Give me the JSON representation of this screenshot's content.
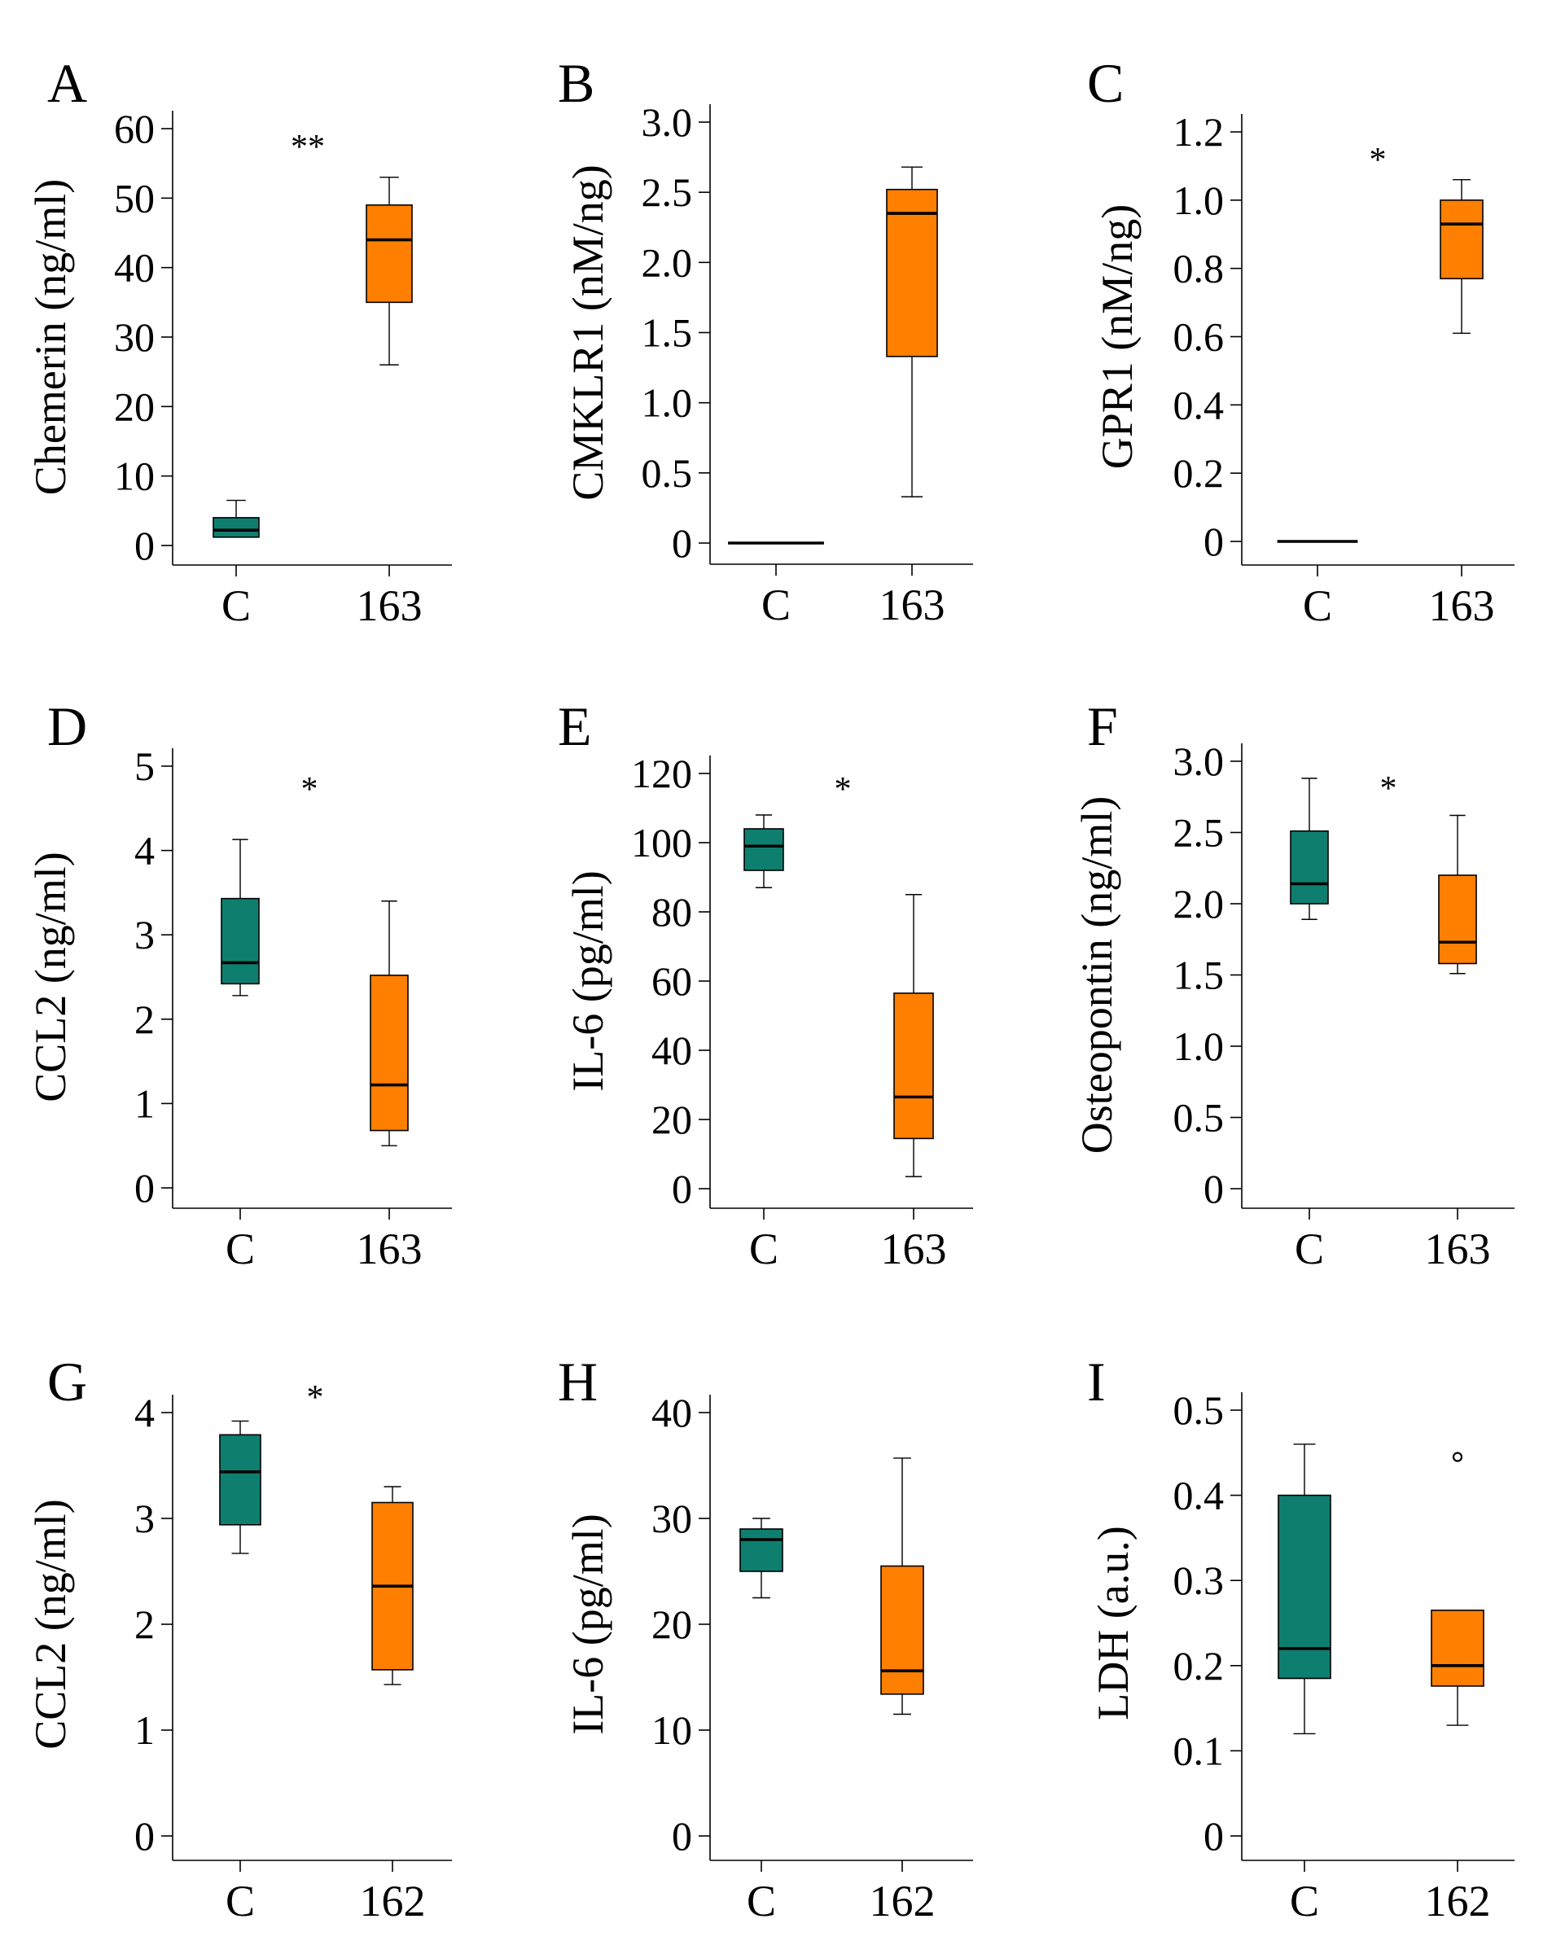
{
  "chart_data": [
    {
      "type": "box",
      "panel_label": "A",
      "ylabel": "Chemerin (ng/ml)",
      "ylim": [
        0,
        60
      ],
      "yticks": [
        "0",
        "10",
        "20",
        "30",
        "40",
        "50",
        "60"
      ],
      "yticks_values": [
        0,
        10,
        20,
        30,
        40,
        50,
        60
      ],
      "categories": [
        "C",
        "163"
      ],
      "boxes": [
        {
          "category": "C",
          "color": "#0e7f6f",
          "min": 1.2,
          "q1": 1.2,
          "median": 2.2,
          "q3": 4.0,
          "max": 6.5
        },
        {
          "category": "163",
          "color": "#ff7f00",
          "min": 26,
          "q1": 35,
          "median": 44,
          "q3": 49,
          "max": 53
        }
      ],
      "significance": "**"
    },
    {
      "type": "box",
      "panel_label": "B",
      "ylabel": "CMKLR1 (nM/ng)",
      "ylim": [
        0,
        3.0
      ],
      "yticks": [
        "0",
        "0.5",
        "1.0",
        "1.5",
        "2.0",
        "2.5",
        "3.0"
      ],
      "yticks_values": [
        0,
        0.5,
        1.0,
        1.5,
        2.0,
        2.5,
        3.0
      ],
      "categories": [
        "C",
        "163"
      ],
      "boxes": [
        {
          "category": "C",
          "color": "#0e7f6f",
          "min": 0,
          "q1": 0,
          "median": 0,
          "q3": 0,
          "max": 0
        },
        {
          "category": "163",
          "color": "#ff7f00",
          "min": 0.33,
          "q1": 1.33,
          "median": 2.35,
          "q3": 2.52,
          "max": 2.68
        }
      ],
      "significance": ""
    },
    {
      "type": "box",
      "panel_label": "C",
      "ylabel": "GPR1 (nM/ng)",
      "ylim": [
        0,
        1.2
      ],
      "yticks": [
        "0",
        "0.2",
        "0.4",
        "0.6",
        "0.8",
        "1.0",
        "1.2"
      ],
      "yticks_values": [
        0,
        0.2,
        0.4,
        0.6,
        0.8,
        1.0,
        1.2
      ],
      "categories": [
        "C",
        "163"
      ],
      "boxes": [
        {
          "category": "C",
          "color": "#0e7f6f",
          "min": 0,
          "q1": 0,
          "median": 0,
          "q3": 0,
          "max": 0
        },
        {
          "category": "163",
          "color": "#ff7f00",
          "min": 0.61,
          "q1": 0.77,
          "median": 0.93,
          "q3": 1.0,
          "max": 1.06
        }
      ],
      "significance": "*"
    },
    {
      "type": "box",
      "panel_label": "D",
      "ylabel": "CCL2 (ng/ml)",
      "ylim": [
        0,
        5
      ],
      "yticks": [
        "0",
        "1",
        "2",
        "3",
        "4",
        "5"
      ],
      "yticks_values": [
        0,
        1,
        2,
        3,
        4,
        5
      ],
      "categories": [
        "C",
        "163"
      ],
      "boxes": [
        {
          "category": "C",
          "color": "#0e7f6f",
          "min": 2.28,
          "q1": 2.42,
          "median": 2.67,
          "q3": 3.43,
          "max": 4.13
        },
        {
          "category": "163",
          "color": "#ff7f00",
          "min": 0.5,
          "q1": 0.68,
          "median": 1.22,
          "q3": 2.52,
          "max": 3.4
        }
      ],
      "significance": "*"
    },
    {
      "type": "box",
      "panel_label": "E",
      "ylabel": "IL-6 (pg/ml)",
      "ylim": [
        0,
        120
      ],
      "yticks": [
        "0",
        "20",
        "40",
        "60",
        "80",
        "100",
        "120"
      ],
      "yticks_values": [
        0,
        20,
        40,
        60,
        80,
        100,
        120
      ],
      "categories": [
        "C",
        "163"
      ],
      "boxes": [
        {
          "category": "C",
          "color": "#0e7f6f",
          "min": 87,
          "q1": 92,
          "median": 99,
          "q3": 104,
          "max": 108
        },
        {
          "category": "163",
          "color": "#ff7f00",
          "min": 3.5,
          "q1": 14.5,
          "median": 26.5,
          "q3": 56.5,
          "max": 85
        }
      ],
      "significance": "*"
    },
    {
      "type": "box",
      "panel_label": "F",
      "ylabel": "Osteopontin (ng/ml)",
      "ylim": [
        0,
        3.0
      ],
      "yticks": [
        "0",
        "0.5",
        "1.0",
        "1.5",
        "2.0",
        "2.5",
        "3.0"
      ],
      "yticks_values": [
        0,
        0.5,
        1.0,
        1.5,
        2.0,
        2.5,
        3.0
      ],
      "categories": [
        "C",
        "163"
      ],
      "boxes": [
        {
          "category": "C",
          "color": "#0e7f6f",
          "min": 1.89,
          "q1": 2.0,
          "median": 2.14,
          "q3": 2.51,
          "max": 2.88
        },
        {
          "category": "163",
          "color": "#ff7f00",
          "min": 1.51,
          "q1": 1.58,
          "median": 1.73,
          "q3": 2.2,
          "max": 2.62
        }
      ],
      "significance": "*"
    },
    {
      "type": "box",
      "panel_label": "G",
      "ylabel": "CCL2 (ng/ml)",
      "ylim": [
        0,
        4
      ],
      "yticks": [
        "0",
        "1",
        "2",
        "3",
        "4"
      ],
      "yticks_values": [
        0,
        1,
        2,
        3,
        4
      ],
      "categories": [
        "C",
        "162"
      ],
      "boxes": [
        {
          "category": "C",
          "color": "#0e7f6f",
          "min": 2.67,
          "q1": 2.94,
          "median": 3.44,
          "q3": 3.79,
          "max": 3.92
        },
        {
          "category": "162",
          "color": "#ff7f00",
          "min": 1.43,
          "q1": 1.57,
          "median": 2.36,
          "q3": 3.15,
          "max": 3.3
        }
      ],
      "significance": "*"
    },
    {
      "type": "box",
      "panel_label": "H",
      "ylabel": "IL-6 (pg/ml)",
      "ylim": [
        0,
        40
      ],
      "yticks": [
        "0",
        "10",
        "20",
        "30",
        "40"
      ],
      "yticks_values": [
        0,
        10,
        20,
        30,
        40
      ],
      "categories": [
        "C",
        "162"
      ],
      "boxes": [
        {
          "category": "C",
          "color": "#0e7f6f",
          "min": 22.5,
          "q1": 25.0,
          "median": 28.0,
          "q3": 29.0,
          "max": 30.0
        },
        {
          "category": "162",
          "color": "#ff7f00",
          "min": 11.5,
          "q1": 13.4,
          "median": 15.6,
          "q3": 25.5,
          "max": 35.7
        }
      ],
      "significance": ""
    },
    {
      "type": "box",
      "panel_label": "I",
      "ylabel": "LDH (a.u.)",
      "ylim": [
        0,
        0.5
      ],
      "yticks": [
        "0",
        "0.1",
        "0.2",
        "0.3",
        "0.4",
        "0.5"
      ],
      "yticks_values": [
        0,
        0.1,
        0.2,
        0.3,
        0.4,
        0.5
      ],
      "categories": [
        "C",
        "162"
      ],
      "boxes": [
        {
          "category": "C",
          "color": "#0e7f6f",
          "min": 0.12,
          "q1": 0.185,
          "median": 0.22,
          "q3": 0.4,
          "max": 0.46
        },
        {
          "category": "162",
          "color": "#ff7f00",
          "min": 0.13,
          "q1": 0.176,
          "median": 0.2,
          "q3": 0.265,
          "max": 0.265,
          "outliers": [
            0.445
          ]
        }
      ],
      "significance": ""
    }
  ]
}
